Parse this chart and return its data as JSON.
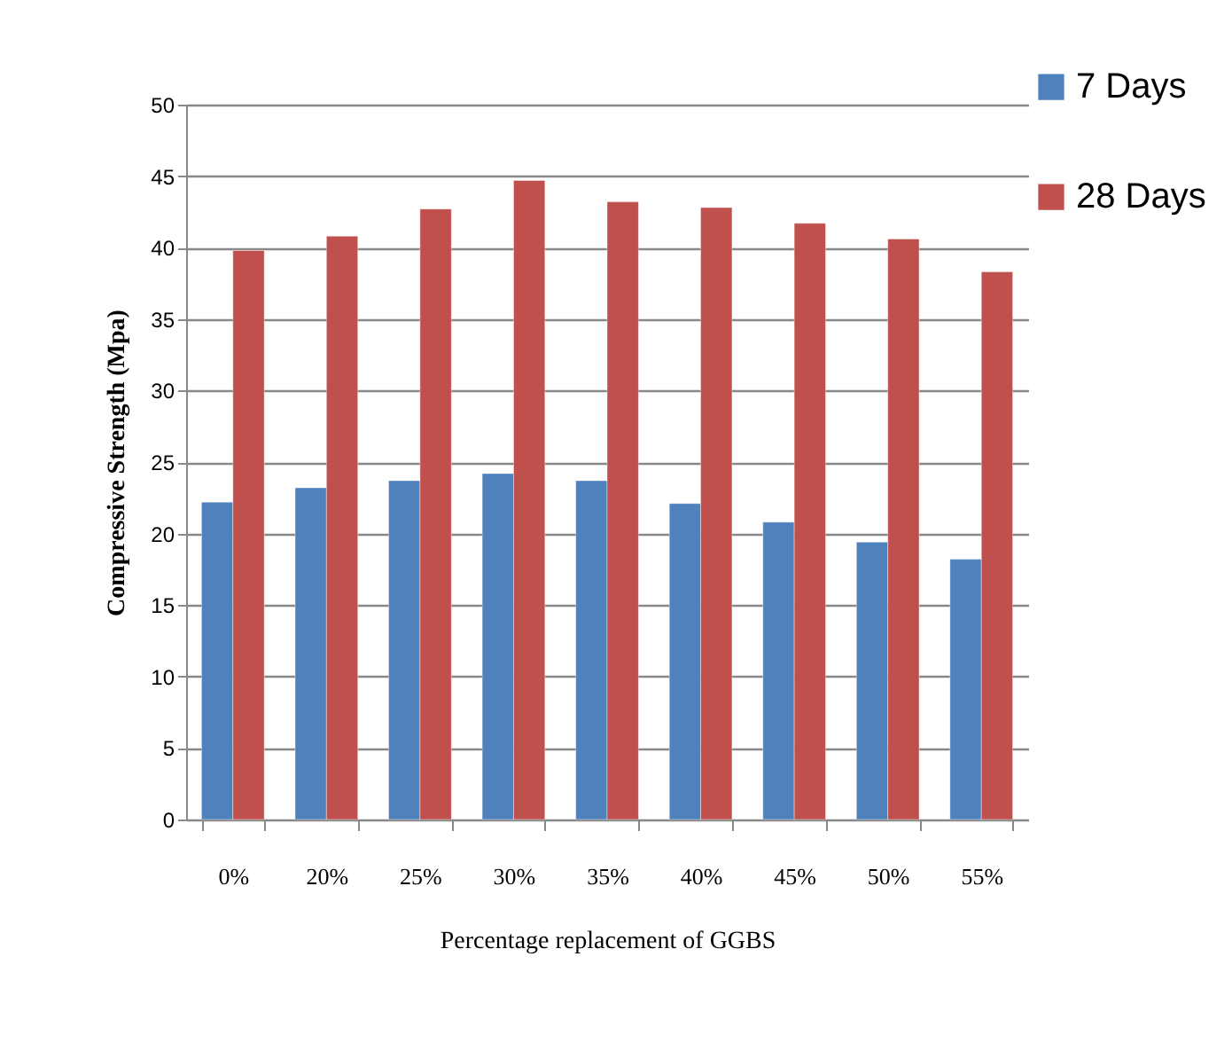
{
  "chart_data": {
    "type": "bar",
    "xlabel": "Percentage  replacement of GGBS",
    "ylabel": "Compressive Strength (Mpa)",
    "categories": [
      "0%",
      "20%",
      "25%",
      "30%",
      "35%",
      "40%",
      "45%",
      "50%",
      "55%"
    ],
    "series": [
      {
        "name": "7 Days",
        "color": "#4f81bd",
        "values": [
          22.2,
          23.2,
          23.7,
          24.2,
          23.7,
          22.1,
          20.8,
          19.4,
          18.2
        ]
      },
      {
        "name": "28 Days",
        "color": "#c0504d",
        "values": [
          39.8,
          40.8,
          42.7,
          44.7,
          43.2,
          42.8,
          41.7,
          40.6,
          38.3
        ]
      }
    ],
    "ylim": [
      0,
      50
    ],
    "yticks": [
      0,
      5,
      10,
      15,
      20,
      25,
      30,
      35,
      40,
      45,
      50
    ],
    "grid": "y",
    "legend": "top right"
  }
}
